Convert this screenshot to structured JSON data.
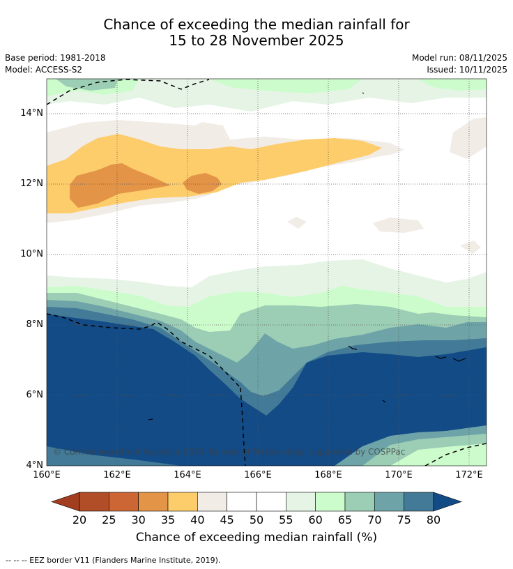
{
  "title": {
    "line1": "Chance of exceeding the median rainfall for",
    "line2": "15 to 28 November 2025"
  },
  "meta": {
    "base_period": "Base period: 1981-2018",
    "model": "Model: ACCESS-S2",
    "model_run": "Model run: 08/11/2025",
    "issued": "Issued: 10/11/2025"
  },
  "map": {
    "lat_labels": [
      "14°N",
      "12°N",
      "10°N",
      "8°N",
      "6°N",
      "4°N"
    ],
    "lon_labels": [
      "160°E",
      "162°E",
      "164°E",
      "166°E",
      "168°E",
      "170°E",
      "172°E"
    ],
    "copyright": "© Commonwealth of Australia 2025, Bureau of Meteorology, supported by COSPPac"
  },
  "colorbar": {
    "ticks": [
      "20",
      "25",
      "30",
      "35",
      "40",
      "45",
      "50",
      "55",
      "60",
      "65",
      "70",
      "75",
      "80"
    ],
    "colors": [
      "#a33d1f",
      "#b24e27",
      "#cc6634",
      "#e39447",
      "#fdcc6b",
      "#f1ece6",
      "#ffffff",
      "#ffffff",
      "#e6f4e6",
      "#ccfccc",
      "#9ccdb5",
      "#6ea4a8",
      "#427a98",
      "#134b86"
    ],
    "label": "Chance of exceeding median rainfall (%)"
  },
  "footnote": "--  --  -- EEZ border V11 (Flanders Marine Institute, 2019)."
}
